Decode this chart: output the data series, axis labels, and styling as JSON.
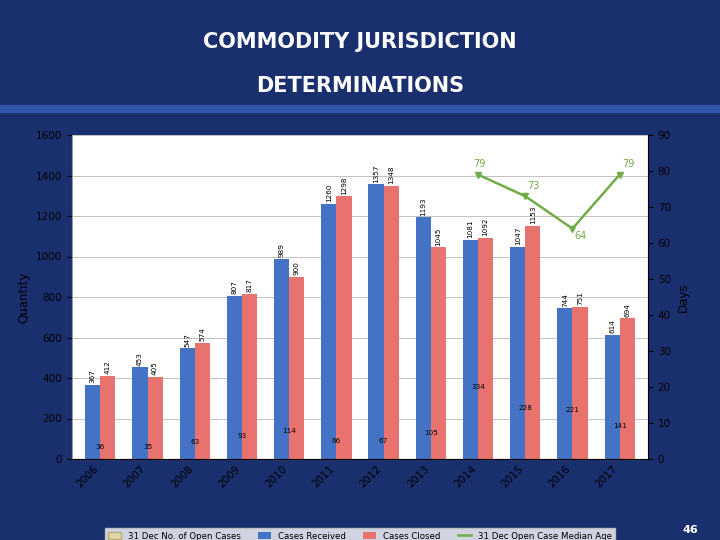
{
  "years": [
    2006,
    2007,
    2008,
    2009,
    2010,
    2011,
    2012,
    2013,
    2014,
    2015,
    2016,
    2017
  ],
  "cases_received": [
    367,
    453,
    547,
    807,
    989,
    1260,
    1357,
    1193,
    1081,
    1047,
    744,
    614
  ],
  "cases_closed": [
    412,
    405,
    574,
    817,
    900,
    1298,
    1348,
    1045,
    1092,
    1153,
    751,
    694
  ],
  "open_cases": [
    36,
    35,
    63,
    93,
    114,
    66,
    67,
    105,
    334,
    228,
    221,
    141
  ],
  "median_age": [
    null,
    null,
    null,
    null,
    null,
    null,
    null,
    null,
    79,
    73,
    64,
    79
  ],
  "bar_blue": "#4472C4",
  "bar_red": "#E8726D",
  "bar_yellow": "#DDD9A3",
  "line_green": "#70AD47",
  "chart_bg": "#FFFFFF",
  "outer_bg": "#1a2f6e",
  "slide_bg": "#1a2f6e",
  "title_line1": "COMMODITY JURISDICTION",
  "title_line2": "DETERMINATIONS",
  "ylabel_left": "Quantity",
  "ylabel_right": "Days",
  "ylim_left": [
    0,
    1600
  ],
  "ylim_right": [
    0,
    90
  ],
  "yticks_left": [
    0,
    200,
    400,
    600,
    800,
    1000,
    1200,
    1400,
    1600
  ],
  "yticks_right": [
    0,
    10,
    20,
    30,
    40,
    50,
    60,
    70,
    80,
    90
  ],
  "legend_labels": [
    "31 Dec No. of Open Cases",
    "Cases Received",
    "Cases Closed",
    "31 Dec Open Case Median Age"
  ],
  "page_number": "46",
  "blue_stripe_color": "#3355AA",
  "title_color": "#FFFFFF"
}
